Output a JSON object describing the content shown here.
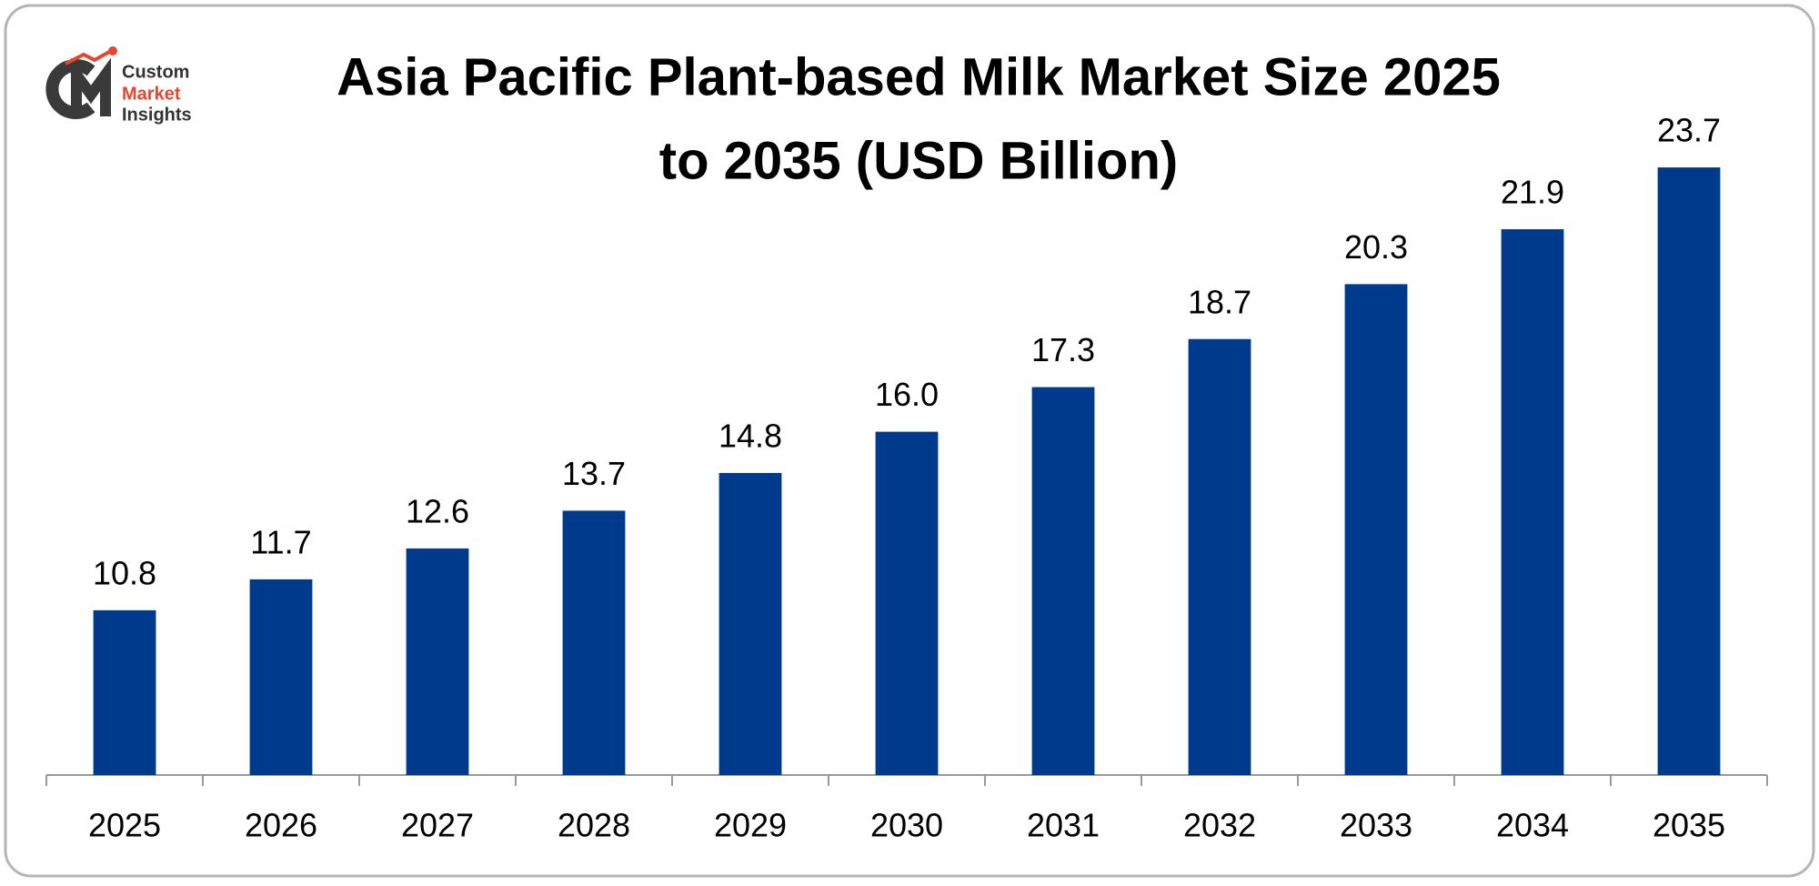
{
  "logo": {
    "lines": [
      "Custom",
      "Market",
      "Insights"
    ]
  },
  "chart_data": {
    "type": "bar",
    "title_lines": [
      "Asia Pacific Plant-based Milk Market Size 2025",
      "to 2035 (USD Billion)"
    ],
    "categories": [
      "2025",
      "2026",
      "2027",
      "2028",
      "2029",
      "2030",
      "2031",
      "2032",
      "2033",
      "2034",
      "2035"
    ],
    "values": [
      10.8,
      11.7,
      12.6,
      13.7,
      14.8,
      16.0,
      17.3,
      18.7,
      20.3,
      21.9,
      23.7
    ],
    "value_labels": [
      "10.8",
      "11.7",
      "12.6",
      "13.7",
      "14.8",
      "16.0",
      "17.3",
      "18.7",
      "20.3",
      "21.9",
      "23.7"
    ],
    "color": "#003a8c",
    "ylim": [
      6,
      25
    ]
  }
}
